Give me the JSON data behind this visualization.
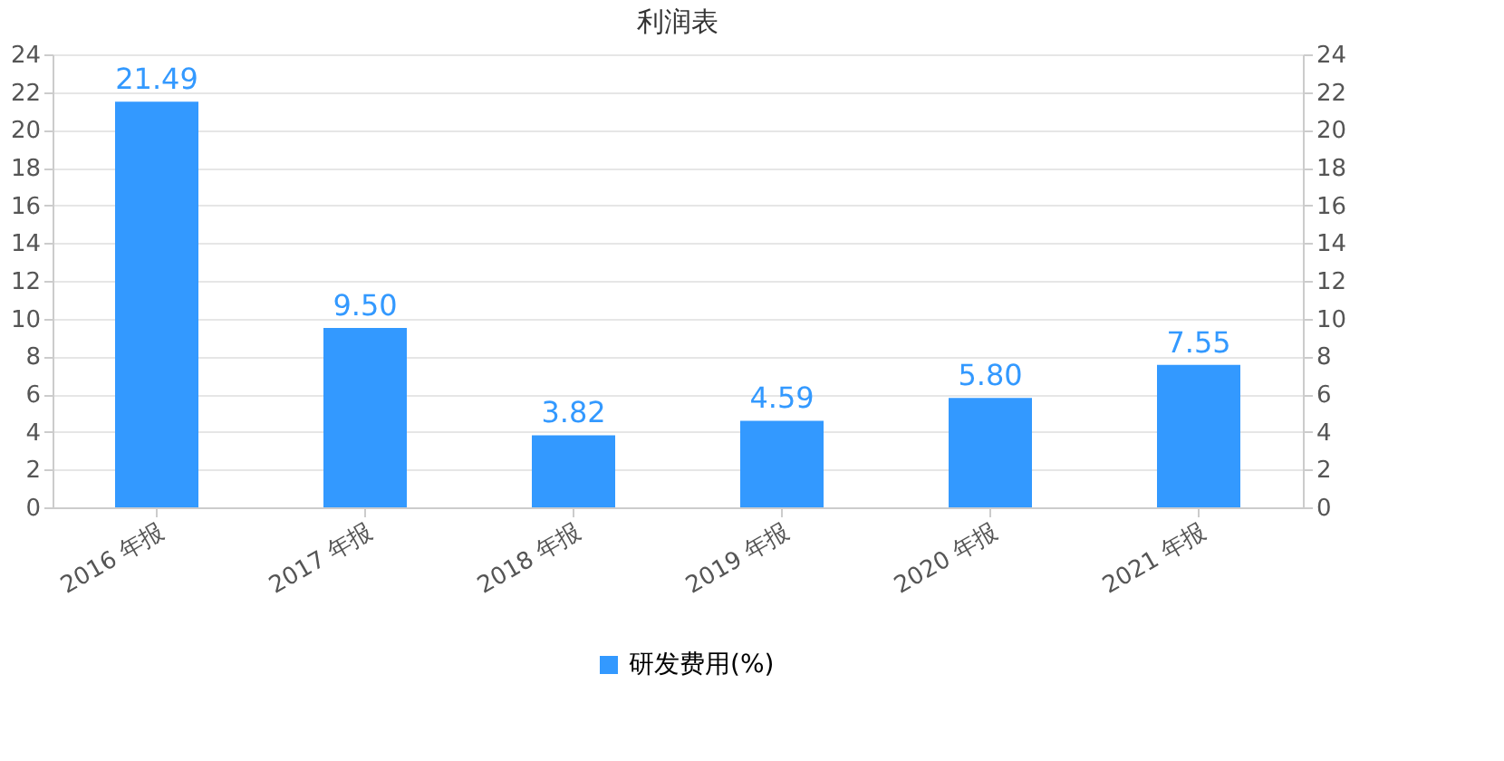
{
  "chart_data": {
    "type": "bar",
    "title": "利润表",
    "categories": [
      "2016 年报",
      "2017 年报",
      "2018 年报",
      "2019 年报",
      "2020 年报",
      "2021 年报"
    ],
    "series": [
      {
        "name": "研发费用(%)",
        "color": "#3399ff",
        "values": [
          21.49,
          9.5,
          3.82,
          4.59,
          5.8,
          7.55
        ]
      }
    ],
    "value_labels": [
      "21.49",
      "9.50",
      "3.82",
      "4.59",
      "5.80",
      "7.55"
    ],
    "ylim": [
      0,
      24
    ],
    "yticks": [
      0,
      2,
      4,
      6,
      8,
      10,
      12,
      14,
      16,
      18,
      20,
      22,
      24
    ],
    "y2lim": [
      0,
      24
    ],
    "y2ticks": [
      0,
      2,
      4,
      6,
      8,
      10,
      12,
      14,
      16,
      18,
      20,
      22,
      24
    ],
    "grid": "y",
    "legend": "bottom"
  }
}
